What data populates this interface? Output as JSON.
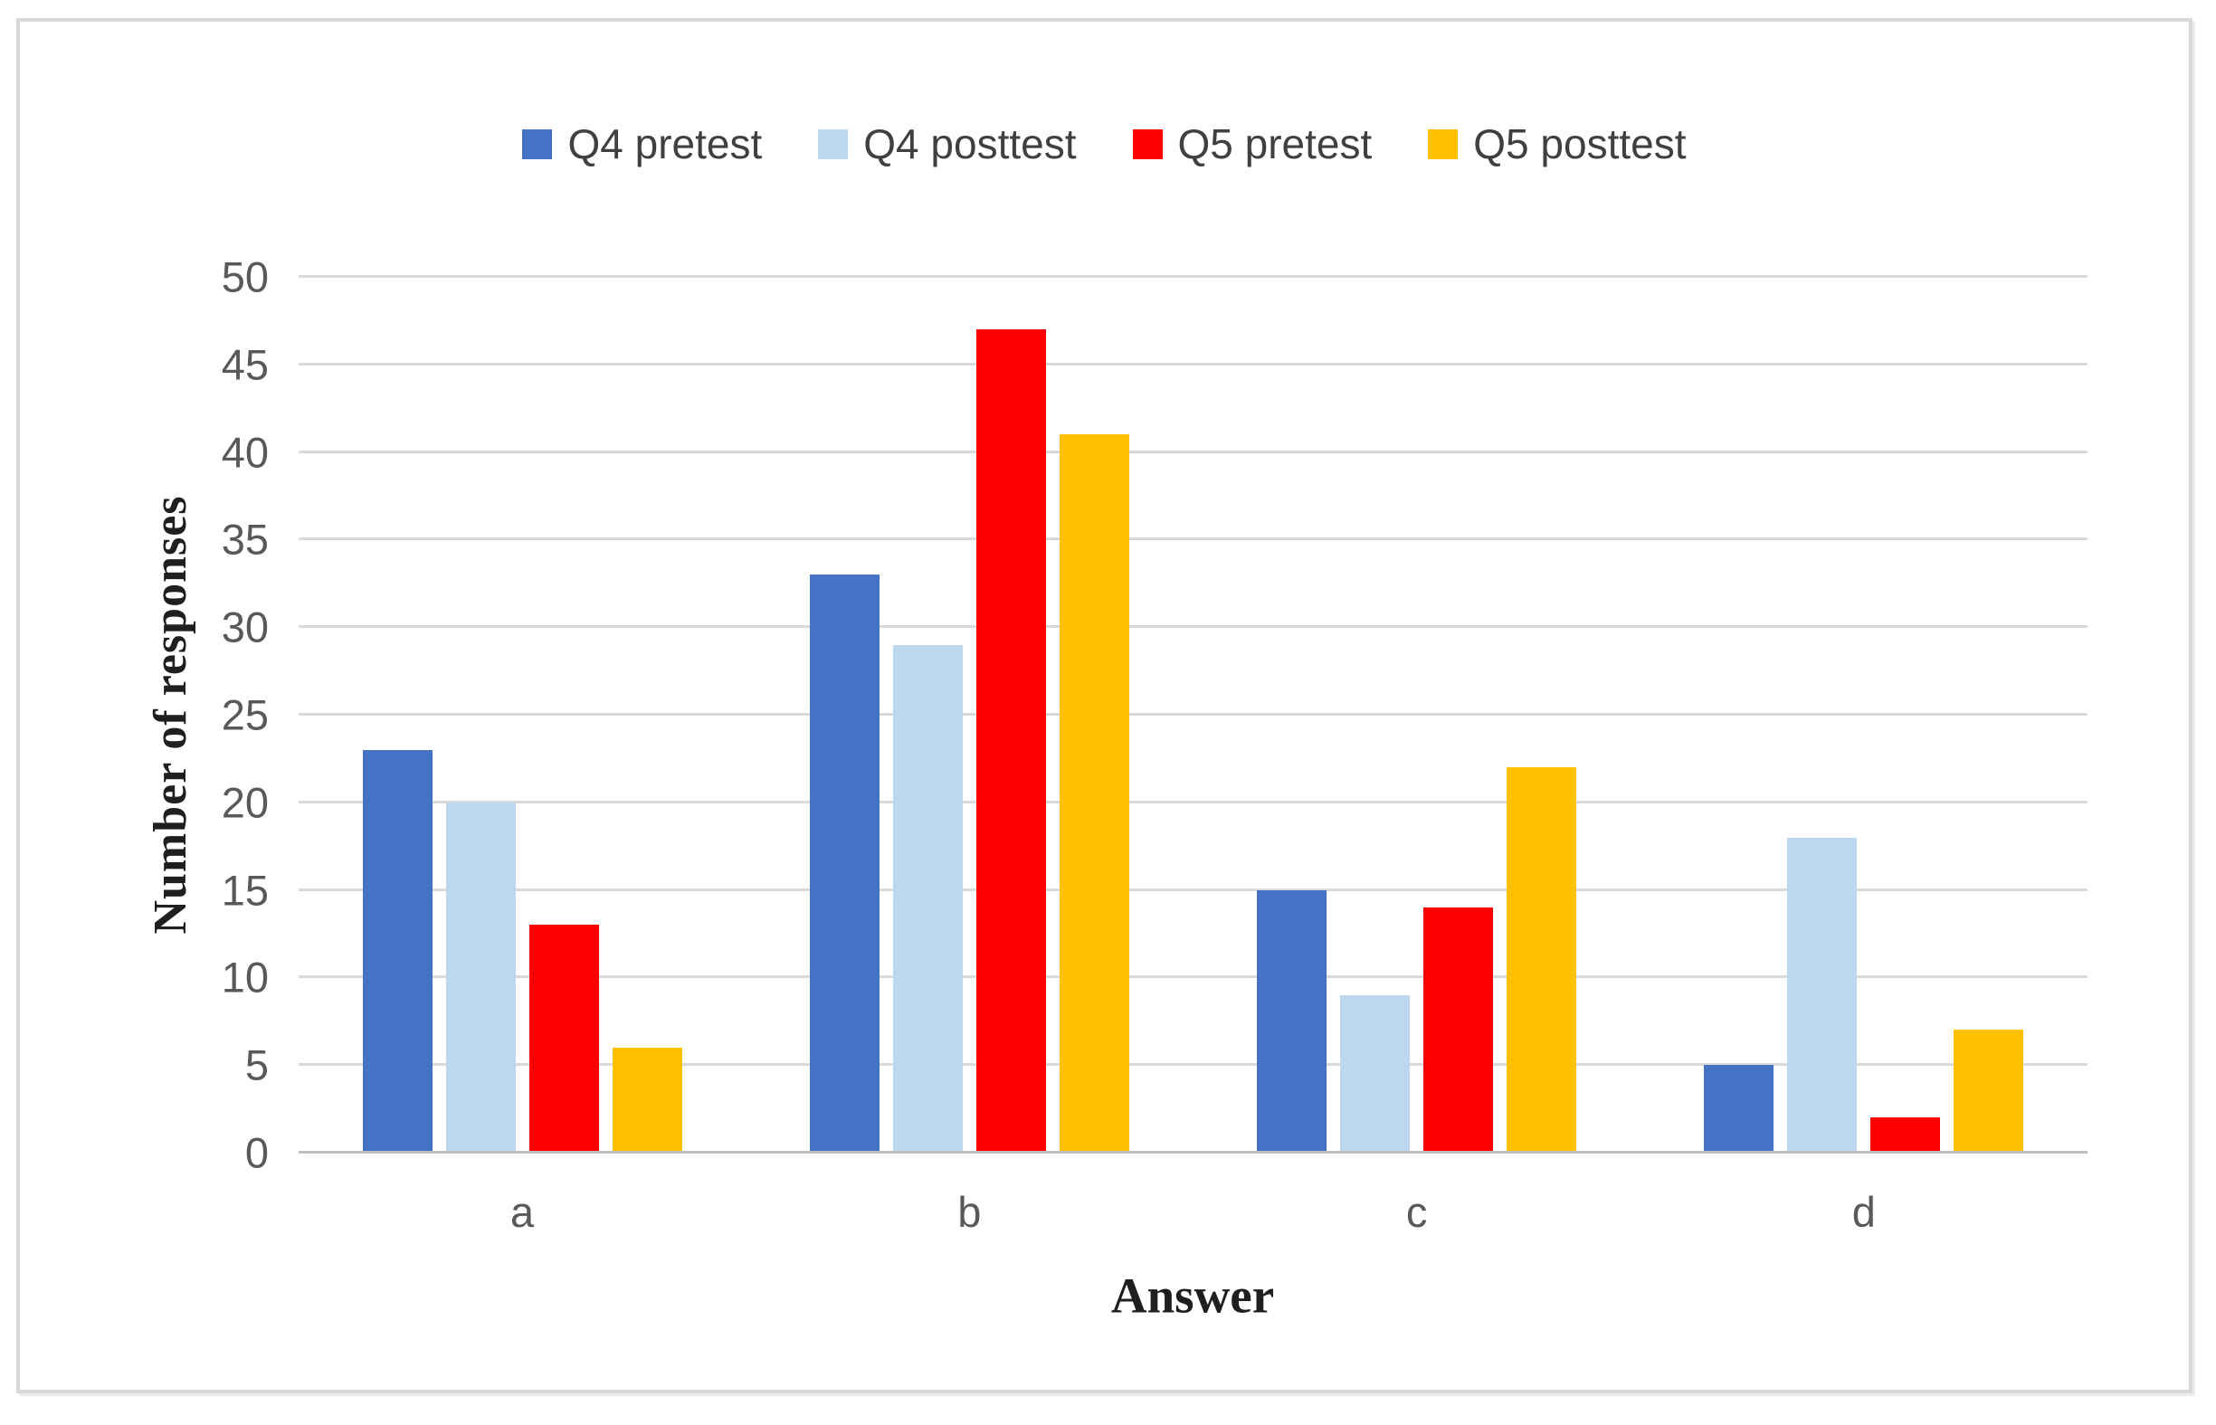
{
  "chart_data": {
    "type": "bar",
    "categories": [
      "a",
      "b",
      "c",
      "d"
    ],
    "series": [
      {
        "name": "Q4 pretest",
        "color": "#4472C4",
        "values": [
          23,
          33,
          15,
          5
        ]
      },
      {
        "name": "Q4 posttest",
        "color": "#BDD7EE",
        "values": [
          20,
          29,
          9,
          18
        ]
      },
      {
        "name": "Q5 pretest",
        "color": "#FF0000",
        "values": [
          13,
          47,
          14,
          2
        ]
      },
      {
        "name": "Q5 posttest",
        "color": "#FFC000",
        "values": [
          6,
          41,
          22,
          7
        ]
      }
    ],
    "title": "",
    "xlabel": "Answer",
    "ylabel": "Number of responses",
    "ylim": [
      0,
      50
    ],
    "ytick_step": 5,
    "grid": true,
    "legend_position": "top",
    "colors": {
      "gridline": "#D9D9D9",
      "axis_line": "#BFBFBF",
      "tick_text": "#595959",
      "legend_text": "#404040",
      "frame_border": "#D9D9D9",
      "background": "#FFFFFF"
    }
  }
}
